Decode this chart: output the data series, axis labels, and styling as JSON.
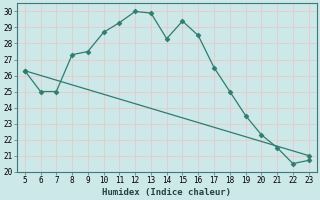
{
  "line1_x": [
    5,
    6,
    7,
    8,
    9,
    10,
    11,
    12,
    13,
    14,
    15,
    16,
    17,
    18,
    19,
    20,
    21,
    22,
    23
  ],
  "line1_y": [
    26.3,
    25.0,
    25.0,
    27.3,
    27.5,
    28.7,
    29.3,
    30.0,
    29.9,
    28.3,
    29.4,
    28.5,
    26.5,
    25.0,
    23.5,
    22.3,
    21.5,
    20.5,
    20.7
  ],
  "line2_x": [
    5,
    23
  ],
  "line2_y": [
    26.3,
    21.0
  ],
  "line_color": "#2e7d6e",
  "bg_color": "#cce8e8",
  "grid_color": "#e8c8c8",
  "xlim": [
    4.5,
    23.5
  ],
  "ylim": [
    20,
    30.5
  ],
  "yticks": [
    20,
    21,
    22,
    23,
    24,
    25,
    26,
    27,
    28,
    29,
    30
  ],
  "xticks": [
    5,
    6,
    7,
    8,
    9,
    10,
    11,
    12,
    13,
    14,
    15,
    16,
    17,
    18,
    19,
    20,
    21,
    22,
    23
  ],
  "xlabel": "Humidex (Indice chaleur)",
  "marker": "D",
  "markersize": 2.5,
  "linewidth": 0.9,
  "tick_fontsize": 5.5,
  "xlabel_fontsize": 6.5
}
